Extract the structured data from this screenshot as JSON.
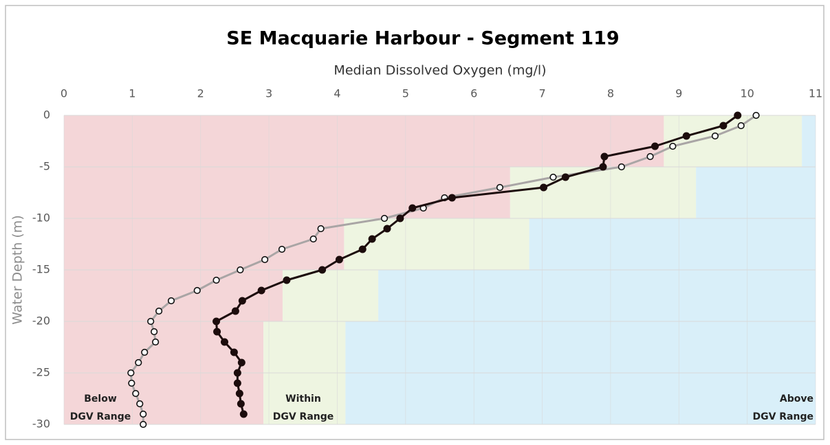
{
  "chart_data": {
    "type": "depth_profile",
    "title": "SE Macquarie Harbour - Segment 119",
    "x_label": "Median Dissolved Oxygen (mg/l)",
    "y_label": "Water Depth (m)",
    "xlim": [
      0,
      11
    ],
    "xticks": [
      0,
      1,
      2,
      3,
      4,
      5,
      6,
      7,
      8,
      9,
      10,
      11
    ],
    "ylim": [
      -30,
      0
    ],
    "yticks": [
      0,
      -5,
      -10,
      -15,
      -20,
      -25,
      -30
    ],
    "grid": true,
    "band_colors": {
      "below": "#f4d6d8",
      "within": "#eef5e1",
      "above": "#d9eff9"
    },
    "dgv_bands": [
      {
        "top": 0,
        "bottom": -5,
        "within": [
          8.78,
          10.8
        ]
      },
      {
        "top": -5,
        "bottom": -10,
        "within": [
          6.53,
          9.25
        ]
      },
      {
        "top": -10,
        "bottom": -15,
        "within": [
          4.1,
          6.81
        ]
      },
      {
        "top": -15,
        "bottom": -20,
        "within": [
          3.2,
          4.6
        ]
      },
      {
        "top": -20,
        "bottom": -30,
        "within": [
          2.92,
          4.12
        ]
      }
    ],
    "annotations": [
      [
        "Below",
        "DGV Range"
      ],
      [
        "Within",
        "DGV Range"
      ],
      [
        "Above",
        "DGV Range"
      ]
    ],
    "series": [
      {
        "color": "#a9a5a5",
        "marker": "open",
        "x": [
          10.13,
          9.91,
          9.53,
          8.91,
          8.58,
          8.16,
          7.16,
          6.38,
          5.57,
          5.26,
          4.69,
          3.76,
          3.65,
          3.19,
          2.94,
          2.58,
          2.23,
          1.95,
          1.57,
          1.39,
          1.27,
          1.32,
          1.34,
          1.18,
          1.09,
          0.98,
          0.99,
          1.05,
          1.11,
          1.16,
          1.16
        ],
        "y": [
          0,
          -1,
          -2,
          -3,
          -4,
          -5,
          -6,
          -7,
          -8,
          -9,
          -10,
          -11,
          -12,
          -13,
          -14,
          -15,
          -16,
          -17,
          -18,
          -19,
          -20,
          -21,
          -22,
          -23,
          -24,
          -25,
          -26,
          -27,
          -28,
          -29,
          -30
        ]
      },
      {
        "color": "#1c0c0c",
        "marker": "filled",
        "x": [
          9.86,
          9.65,
          9.11,
          8.65,
          7.91,
          7.89,
          7.34,
          7.02,
          5.68,
          5.1,
          4.92,
          4.73,
          4.51,
          4.37,
          4.03,
          3.78,
          3.26,
          2.89,
          2.61,
          2.51,
          2.23,
          2.24,
          2.35,
          2.49,
          2.6,
          2.54,
          2.54,
          2.57,
          2.59,
          2.63
        ],
        "y": [
          0,
          -1,
          -2,
          -3,
          -4,
          -5,
          -6,
          -7,
          -8,
          -9,
          -10,
          -11,
          -12,
          -13,
          -14,
          -15,
          -16,
          -17,
          -18,
          -19,
          -20,
          -21,
          -22,
          -23,
          -24,
          -25,
          -26,
          -27,
          -28,
          -29
        ]
      }
    ]
  }
}
